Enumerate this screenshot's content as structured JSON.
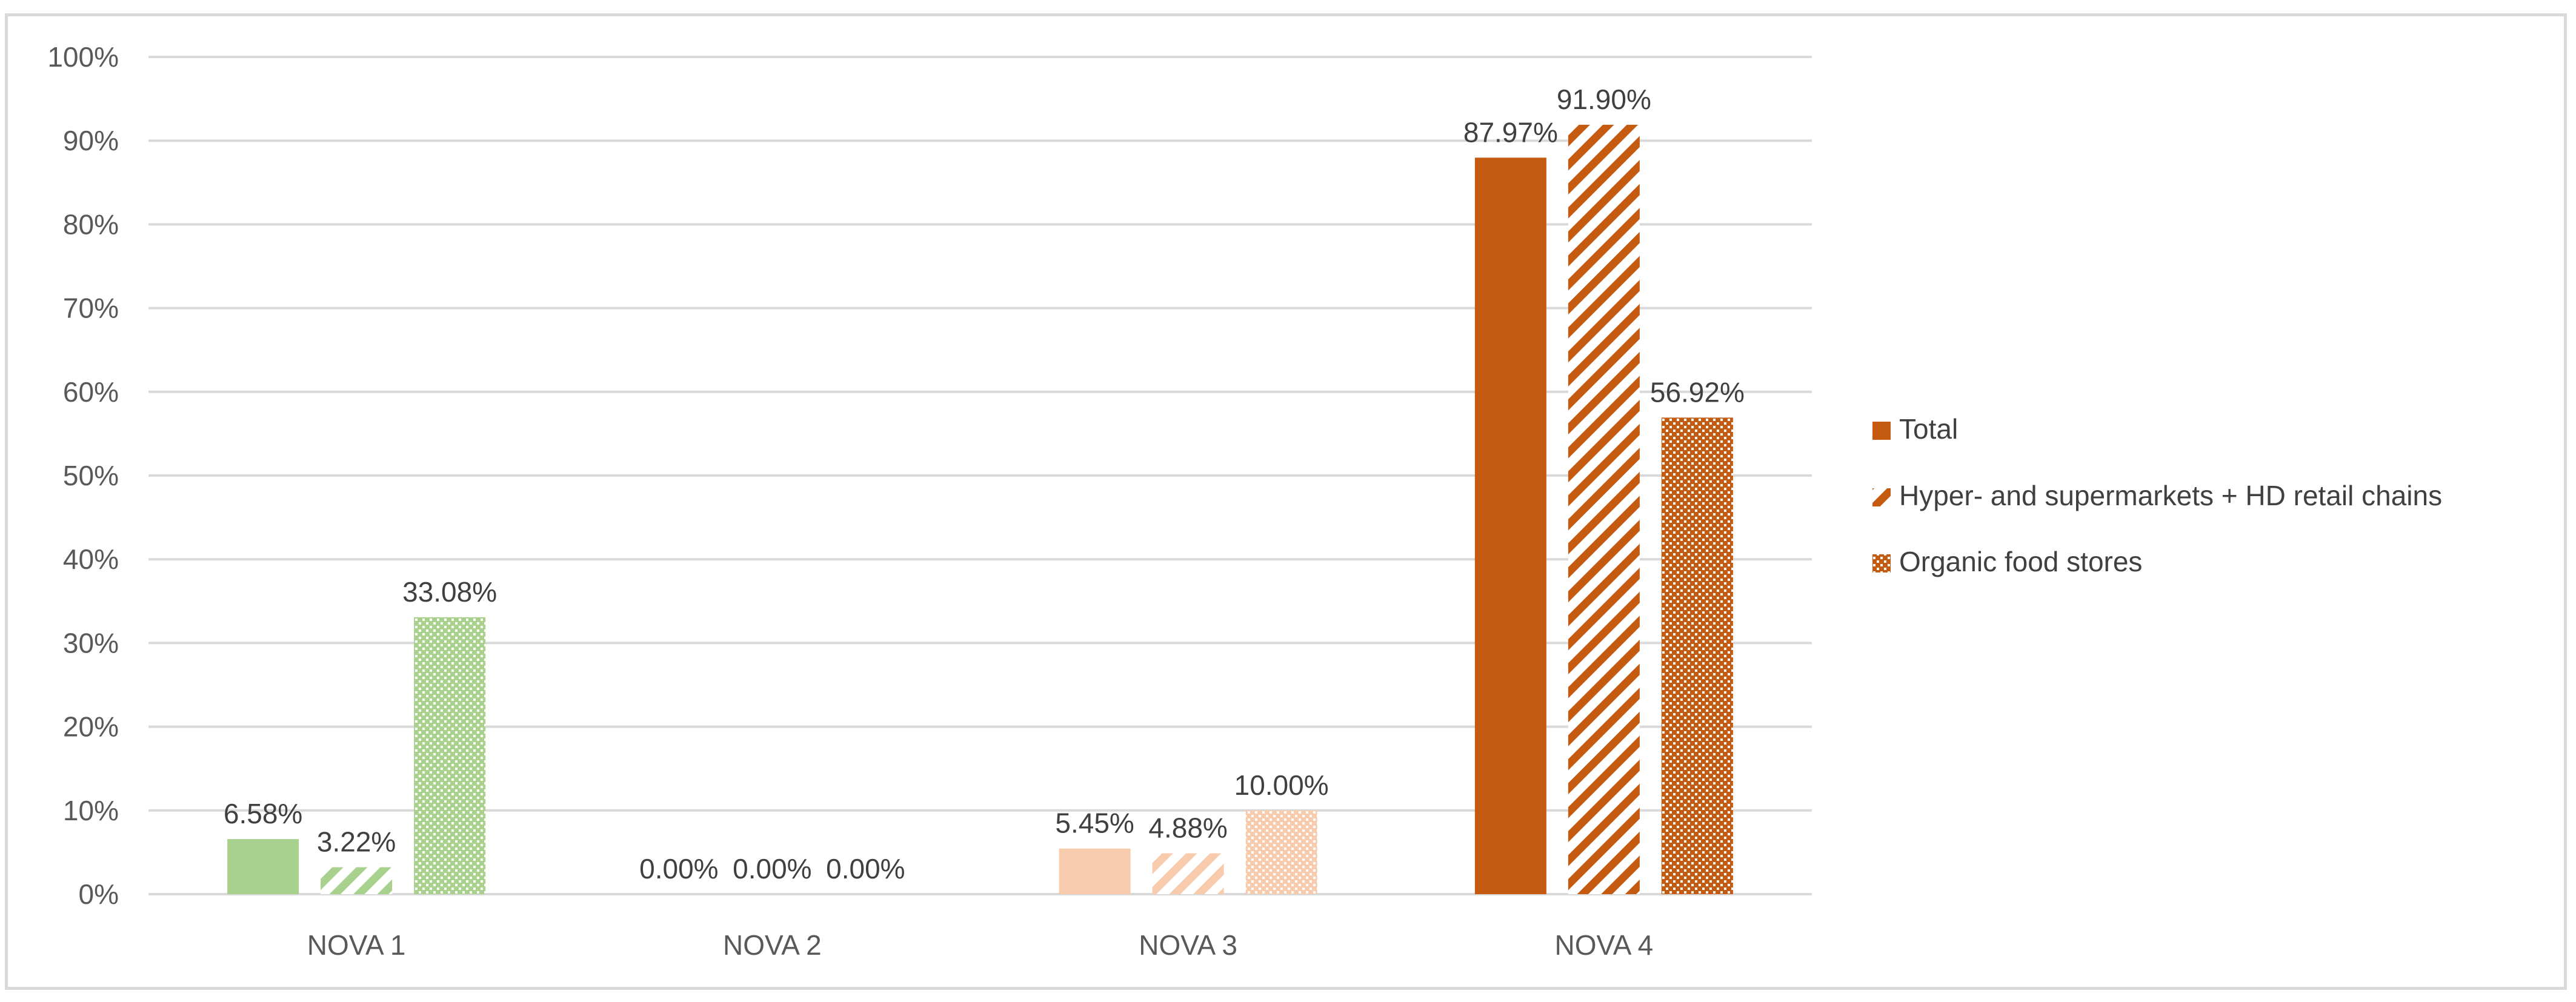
{
  "chart_data": {
    "type": "bar",
    "title": "",
    "xlabel": "",
    "ylabel": "",
    "ylim": [
      0,
      100
    ],
    "y_ticks": [
      "0%",
      "10%",
      "20%",
      "30%",
      "40%",
      "50%",
      "60%",
      "70%",
      "80%",
      "90%",
      "100%"
    ],
    "y_tick_values": [
      0,
      10,
      20,
      30,
      40,
      50,
      60,
      70,
      80,
      90,
      100
    ],
    "grid": true,
    "legend_position": "right",
    "categories": [
      "NOVA 1",
      "NOVA 2",
      "NOVA 3",
      "NOVA 4"
    ],
    "category_colors": [
      "#a9d18e",
      "#a9d18e",
      "#f8cbad",
      "#c55a11"
    ],
    "legend_color": "#c55a11",
    "series": [
      {
        "name": "Total",
        "pattern": "solid",
        "values": [
          6.58,
          0.0,
          5.45,
          87.97
        ],
        "labels": [
          "6.58%",
          "0.00%",
          "5.45%",
          "87.97%"
        ]
      },
      {
        "name": "Hyper- and supermarkets + HD retail chains",
        "pattern": "diagonal",
        "values": [
          3.22,
          0.0,
          4.88,
          91.9
        ],
        "labels": [
          "3.22%",
          "0.00%",
          "4.88%",
          "91.90%"
        ]
      },
      {
        "name": "Organic food stores",
        "pattern": "dotted",
        "values": [
          33.08,
          0.0,
          10.0,
          56.92
        ],
        "labels": [
          "33.08%",
          "0.00%",
          "10.00%",
          "56.92%"
        ]
      }
    ]
  }
}
